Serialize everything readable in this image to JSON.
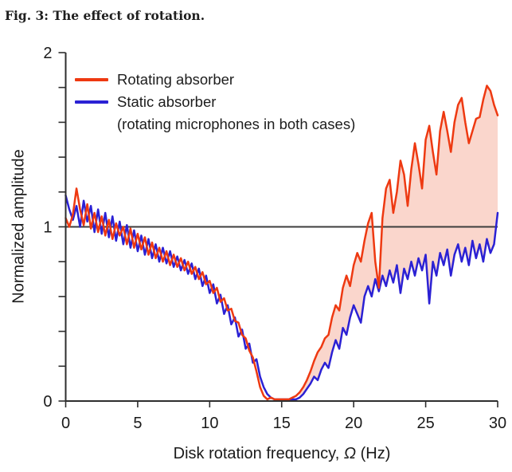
{
  "figure": {
    "title": "Fig. 3: The effect of rotation."
  },
  "legend": {
    "entries": [
      {
        "label": "Rotating absorber",
        "color": "#ee3911"
      },
      {
        "label": "Static absorber",
        "color": "#2b21d4"
      }
    ],
    "note": "(rotating microphones in both cases)"
  },
  "axes": {
    "ylabel": "Normalized amplitude",
    "xlabel_prefix": "Disk rotation frequency, ",
    "xlabel_omega": "Ω",
    "xlabel_suffix": " (Hz)"
  },
  "chart_data": {
    "type": "line",
    "title": "Fig. 3: The effect of rotation.",
    "xlabel": "Disk rotation frequency, Ω (Hz)",
    "ylabel": "Normalized amplitude",
    "xlim": [
      0,
      30
    ],
    "ylim": [
      0,
      2
    ],
    "x_ticks": [
      0,
      5,
      10,
      15,
      20,
      25,
      30
    ],
    "y_ticks": [
      0,
      1,
      2
    ],
    "y_minor_step": 0.2,
    "grid": false,
    "legend_position": "top-left-inside",
    "reference_line_y": 1,
    "reference_line_color": "#3d3d3d",
    "fill_between": {
      "from_x": 16.25,
      "color": "#fad6cc",
      "between": [
        "Rotating absorber",
        "Static absorber"
      ]
    },
    "x_start": 0,
    "x_step": 0.25,
    "series": [
      {
        "name": "Rotating absorber",
        "color": "#ee3911",
        "values": [
          1.05,
          1.0,
          1.07,
          1.22,
          1.1,
          1.01,
          1.13,
          0.99,
          1.08,
          0.97,
          1.06,
          0.95,
          1.04,
          0.93,
          1.02,
          0.95,
          1.0,
          0.9,
          0.99,
          0.88,
          0.96,
          0.87,
          0.94,
          0.84,
          0.91,
          0.82,
          0.88,
          0.8,
          0.86,
          0.78,
          0.84,
          0.77,
          0.82,
          0.75,
          0.8,
          0.73,
          0.77,
          0.7,
          0.74,
          0.67,
          0.69,
          0.62,
          0.65,
          0.57,
          0.59,
          0.52,
          0.53,
          0.46,
          0.45,
          0.38,
          0.36,
          0.29,
          0.25,
          0.17,
          0.08,
          0.03,
          0.01,
          0.02,
          0.01,
          0.01,
          0.01,
          0.01,
          0.01,
          0.02,
          0.03,
          0.05,
          0.08,
          0.12,
          0.17,
          0.23,
          0.28,
          0.31,
          0.36,
          0.38,
          0.48,
          0.55,
          0.52,
          0.65,
          0.72,
          0.66,
          0.78,
          0.85,
          0.8,
          0.92,
          1.02,
          1.08,
          0.8,
          0.65,
          1.05,
          1.22,
          1.27,
          1.08,
          1.2,
          1.38,
          1.3,
          1.12,
          1.33,
          1.48,
          1.36,
          1.22,
          1.5,
          1.58,
          1.43,
          1.3,
          1.55,
          1.66,
          1.55,
          1.43,
          1.6,
          1.7,
          1.74,
          1.6,
          1.48,
          1.55,
          1.62,
          1.63,
          1.73,
          1.81,
          1.78,
          1.7,
          1.64
        ]
      },
      {
        "name": "Static absorber",
        "color": "#2b21d4",
        "values": [
          1.18,
          1.1,
          1.04,
          1.12,
          1.0,
          1.15,
          1.03,
          1.12,
          0.97,
          1.1,
          0.96,
          1.08,
          0.94,
          1.06,
          0.92,
          1.03,
          0.9,
          1.01,
          0.88,
          0.98,
          0.86,
          0.95,
          0.84,
          0.93,
          0.82,
          0.9,
          0.8,
          0.88,
          0.79,
          0.86,
          0.77,
          0.83,
          0.75,
          0.81,
          0.73,
          0.79,
          0.7,
          0.76,
          0.66,
          0.72,
          0.62,
          0.67,
          0.56,
          0.61,
          0.5,
          0.55,
          0.44,
          0.48,
          0.37,
          0.41,
          0.3,
          0.33,
          0.22,
          0.24,
          0.14,
          0.08,
          0.04,
          0.02,
          0.01,
          0.01,
          0.01,
          0.01,
          0.01,
          0.01,
          0.01,
          0.02,
          0.04,
          0.07,
          0.1,
          0.14,
          0.12,
          0.18,
          0.22,
          0.19,
          0.28,
          0.35,
          0.3,
          0.42,
          0.38,
          0.48,
          0.55,
          0.5,
          0.45,
          0.6,
          0.66,
          0.6,
          0.7,
          0.63,
          0.72,
          0.66,
          0.75,
          0.68,
          0.78,
          0.62,
          0.76,
          0.7,
          0.8,
          0.72,
          0.82,
          0.75,
          0.84,
          0.56,
          0.8,
          0.72,
          0.85,
          0.78,
          0.87,
          0.72,
          0.84,
          0.9,
          0.8,
          0.88,
          0.78,
          0.92,
          0.82,
          0.9,
          0.8,
          0.93,
          0.85,
          0.9,
          1.08
        ]
      }
    ]
  }
}
